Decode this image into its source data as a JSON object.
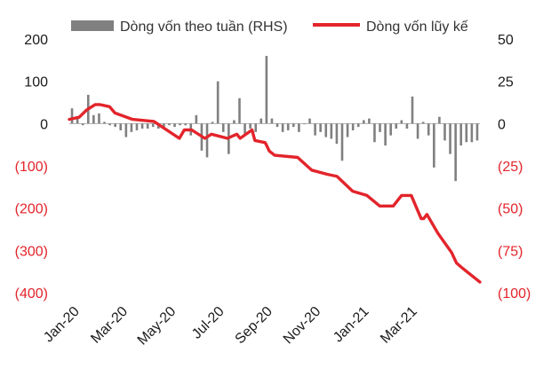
{
  "chart_data": {
    "type": "bar+line",
    "x_tick_labels": [
      "Jan-20",
      "Mar-20",
      "May-20",
      "Jul-20",
      "Sep-20",
      "Nov-20",
      "Jan-21",
      "Mar-21"
    ],
    "left_axis": {
      "ticks": [
        200,
        100,
        0,
        -100,
        -200,
        -300,
        -400
      ],
      "tick_labels": [
        "200",
        "100",
        "0",
        "(100)",
        "(200)",
        "(300)",
        "(400)"
      ],
      "ylim": [
        -400,
        200
      ]
    },
    "right_axis": {
      "ticks": [
        50,
        25,
        0,
        -25,
        -50,
        -75,
        -100
      ],
      "tick_labels": [
        "50",
        "25",
        "0",
        "(25)",
        "(50)",
        "(75)",
        "(100)"
      ],
      "ylim": [
        -100,
        50
      ]
    },
    "series": [
      {
        "name": "Dòng vốn theo tuần (RHS)",
        "type": "bar",
        "axis": "right",
        "color": "#808080",
        "values": [
          9,
          3,
          -1,
          17,
          5,
          6,
          1,
          -1,
          -2,
          -4,
          -8,
          -5,
          -4,
          -3,
          -3,
          -2,
          -3,
          -2,
          -1,
          -2,
          -1,
          -1,
          -7,
          5,
          -16,
          -20,
          1,
          25,
          -5,
          -18,
          2,
          15,
          -6,
          -3,
          -5,
          3,
          40,
          3,
          -2,
          -5,
          -4,
          -2,
          -5,
          0,
          3,
          -7,
          -5,
          -8,
          -9,
          -12,
          -22,
          -8,
          -4,
          -2,
          2,
          3,
          -11,
          -5,
          -13,
          -7,
          -3,
          2,
          -3,
          16,
          -9,
          1,
          -7,
          -26,
          4,
          -10,
          -18,
          -34,
          -13,
          -11,
          -11,
          -10
        ],
        "legend_color": "#808080"
      },
      {
        "name": "Dòng vốn lũy kế",
        "type": "line",
        "axis": "left",
        "color": "#e3242b",
        "x_frac": [
          0.0,
          0.024,
          0.042,
          0.063,
          0.074,
          0.098,
          0.111,
          0.154,
          0.206,
          0.268,
          0.28,
          0.298,
          0.33,
          0.346,
          0.385,
          0.408,
          0.416,
          0.445,
          0.452,
          0.477,
          0.487,
          0.5,
          0.556,
          0.59,
          0.628,
          0.652,
          0.69,
          0.725,
          0.756,
          0.772,
          0.789,
          0.809,
          0.823,
          0.833,
          0.857,
          0.863,
          0.871,
          0.898,
          0.931,
          0.943,
          0.955,
          1.0
        ],
        "values": [
          10,
          15,
          32,
          45,
          45,
          40,
          25,
          10,
          5,
          -35,
          -15,
          -15,
          -35,
          -25,
          -35,
          -25,
          -35,
          -15,
          -40,
          -45,
          -65,
          -75,
          -80,
          -110,
          -120,
          -125,
          -160,
          -170,
          -195,
          -195,
          -195,
          -170,
          -170,
          -170,
          -225,
          -225,
          -215,
          -260,
          -305,
          -330,
          -340,
          -375
        ]
      }
    ]
  }
}
